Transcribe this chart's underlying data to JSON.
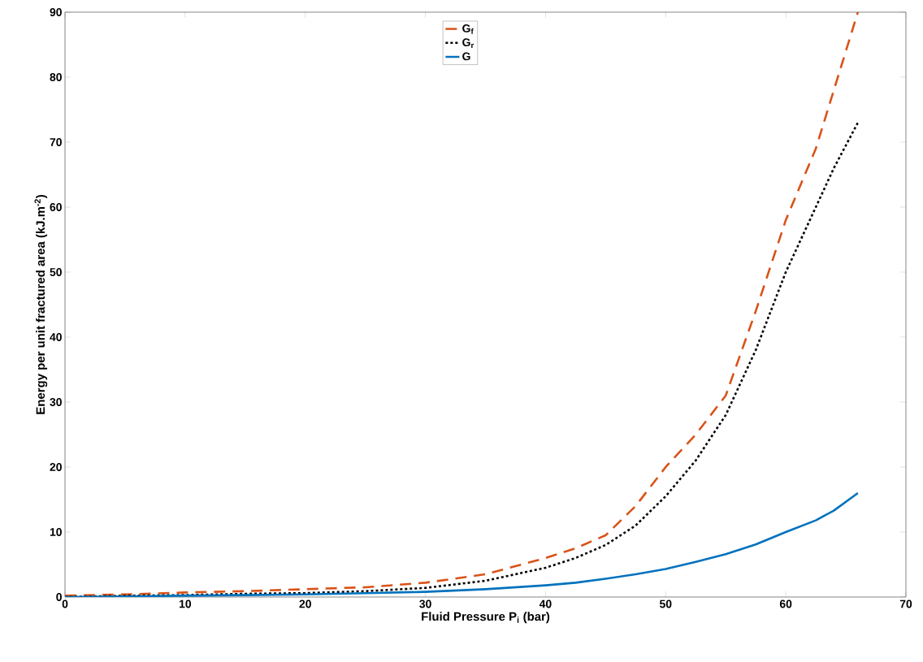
{
  "chart_data": {
    "type": "line",
    "xlabel": "Fluid Pressure P$_{i}$ (bar)",
    "ylabel": "Energy per unit fractured area (kJ.m$^{-2}$)",
    "x": [
      0,
      5,
      10,
      15,
      20,
      25,
      30,
      35,
      40,
      42.5,
      45,
      47.5,
      50,
      52.5,
      55,
      57.5,
      60,
      62.5,
      64,
      66
    ],
    "series": [
      {
        "name": "G$_{f}$",
        "color": "#d95319",
        "line_style": "dashed",
        "values": [
          0.2,
          0.4,
          0.7,
          0.9,
          1.2,
          1.5,
          2.2,
          3.5,
          6,
          7.5,
          9.5,
          14,
          20,
          25,
          31,
          44,
          58,
          69,
          78,
          90
        ]
      },
      {
        "name": "G$_{r}$",
        "color": "#000000",
        "line_style": "dotted",
        "values": [
          0,
          0.2,
          0.3,
          0.5,
          0.6,
          0.9,
          1.4,
          2.5,
          4.5,
          6,
          8,
          11,
          15.5,
          21,
          28,
          38,
          50,
          60,
          66,
          73
        ]
      },
      {
        "name": "G",
        "color": "#0072bd",
        "line_style": "solid",
        "values": [
          0,
          0.1,
          0.2,
          0.3,
          0.4,
          0.6,
          0.8,
          1.2,
          1.8,
          2.2,
          2.8,
          3.5,
          4.3,
          5.4,
          6.6,
          8.1,
          10,
          11.8,
          13.3,
          16
        ]
      }
    ],
    "xlim": [
      0,
      70
    ],
    "ylim": [
      0,
      90
    ],
    "xticks": [
      0,
      10,
      20,
      30,
      40,
      50,
      60,
      70
    ],
    "yticks": [
      0,
      10,
      20,
      30,
      40,
      50,
      60,
      70,
      80,
      90
    ],
    "legend": "top",
    "grid": false
  }
}
